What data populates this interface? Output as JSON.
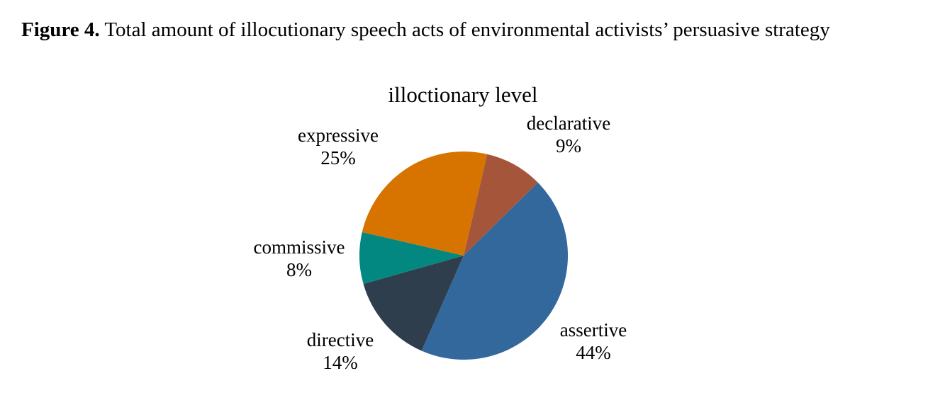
{
  "caption": {
    "bold": "Figure 4.",
    "rest": "Total amount of illocutionary speech acts of environmental activists’ persuasive strategy"
  },
  "chart_data": {
    "type": "pie",
    "title": "illoctionary level",
    "categories": [
      "declarative",
      "assertive",
      "directive",
      "commissive",
      "expressive"
    ],
    "values": [
      9,
      44,
      14,
      8,
      25
    ],
    "unit": "percent",
    "start_angle_deg": 13,
    "direction": "clockwise",
    "legend": "none",
    "background_color": "#FFFFFF",
    "text_color": "#000000",
    "slices": [
      {
        "name": "declarative",
        "value": 9,
        "pct_label": "9%",
        "color": "#A5563A"
      },
      {
        "name": "assertive",
        "value": 44,
        "pct_label": "44%",
        "color": "#33689D"
      },
      {
        "name": "directive",
        "value": 14,
        "pct_label": "14%",
        "color": "#2F3E4D"
      },
      {
        "name": "commissive",
        "value": 8,
        "pct_label": "8%",
        "color": "#028880"
      },
      {
        "name": "expressive",
        "value": 25,
        "pct_label": "25%",
        "color": "#D77400"
      }
    ]
  }
}
